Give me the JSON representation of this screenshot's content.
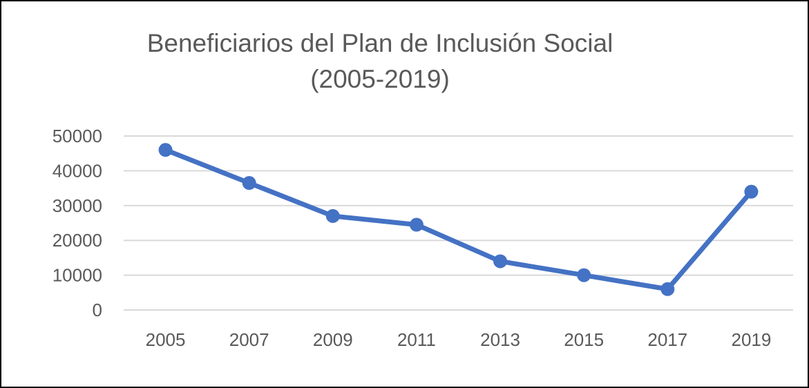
{
  "chart_data": {
    "type": "line",
    "title_lines": [
      "Beneficiarios del Plan de Inclusión Social",
      "(2005-2019)"
    ],
    "categories": [
      "2005",
      "2007",
      "2009",
      "2011",
      "2013",
      "2015",
      "2017",
      "2019"
    ],
    "series": [
      {
        "values": [
          46000,
          36500,
          27000,
          24500,
          14000,
          10000,
          6000,
          34000
        ],
        "color": "#4472c4"
      }
    ],
    "y_ticks": [
      "0",
      "10000",
      "20000",
      "30000",
      "40000",
      "50000"
    ],
    "ylim": [
      0,
      50000
    ],
    "grid": true,
    "legend": "none",
    "colors": {
      "line": "#4472c4",
      "grid": "#d9d9d9",
      "text": "#595959"
    }
  }
}
